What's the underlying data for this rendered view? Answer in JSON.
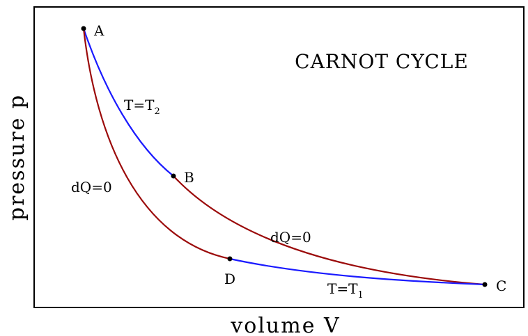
{
  "title": "CARNOT CYCLE",
  "x_axis_label": "volume V",
  "y_axis_label": "pressure p",
  "points": [
    "A",
    "B",
    "C",
    "D"
  ],
  "curve_labels": {
    "isotherm_hot": {
      "text": "T=T",
      "sub": "2"
    },
    "isotherm_cold": {
      "text": "T=T",
      "sub": "1"
    },
    "adiabat_left": "dQ=0",
    "adiabat_right": "dQ=0"
  }
}
